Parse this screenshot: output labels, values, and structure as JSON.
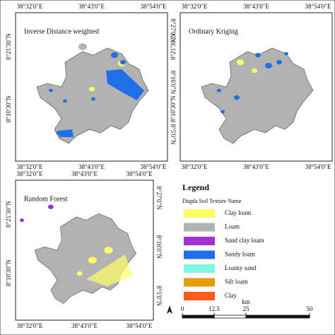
{
  "grid_labels": {
    "lon": [
      "38°32'0\"E",
      "38°43'0\"E",
      "38°54'0\"E"
    ],
    "lat_west": [
      "8°21'30\"N",
      "8°10'30\"N"
    ],
    "lat_east": [
      "8°27'0\"N",
      "8°16'0\"N",
      "8°5'0\"N"
    ]
  },
  "panels": [
    {
      "title": "Inverse Distance weighted"
    },
    {
      "title": "Ordinary Kriging"
    },
    {
      "title": "Random Forest"
    }
  ],
  "legend": {
    "title": "Legend",
    "subtitle": "Dugda Soil Texture Name",
    "items": [
      {
        "label": "Clay loam",
        "color": "#ffff66"
      },
      {
        "label": "Loam",
        "color": "#b2b2b2"
      },
      {
        "label": "Sand clay loam",
        "color": "#a230d6"
      },
      {
        "label": "Sandy loam",
        "color": "#1f6fe6"
      },
      {
        "label": "Loamy sand",
        "color": "#7ff7e0"
      },
      {
        "label": "Silt loam",
        "color": "#e59b0e"
      },
      {
        "label": "Clay",
        "color": "#ff5a1a"
      }
    ]
  },
  "scale_bar": {
    "unit": "km",
    "ticks": [
      0,
      12.5,
      25,
      50
    ]
  }
}
